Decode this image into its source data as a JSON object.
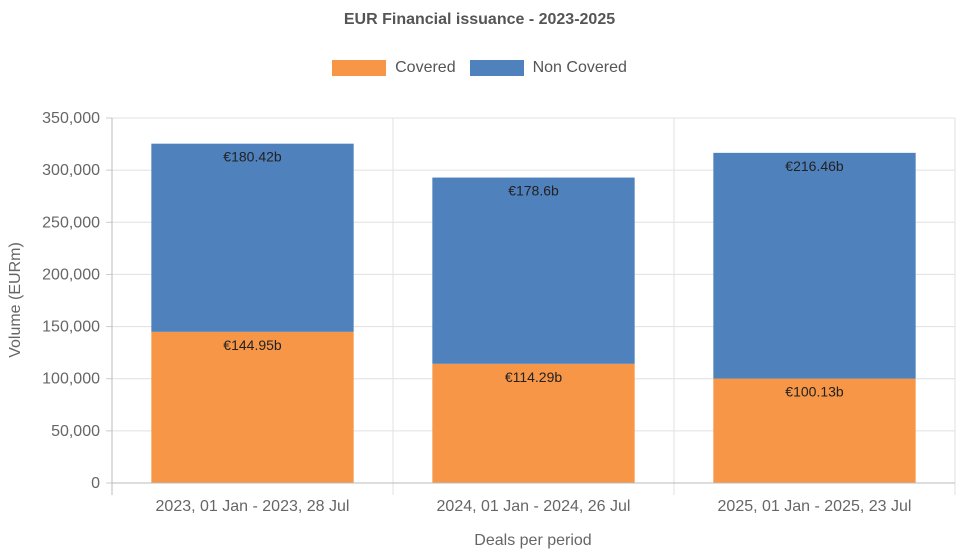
{
  "chart_data": {
    "type": "bar",
    "stacked": true,
    "title": "EUR Financial issuance - 2023-2025",
    "xlabel": "Deals per period",
    "ylabel": "Volume (EURm)",
    "ylim": [
      0,
      350000
    ],
    "yticks": [
      0,
      50000,
      100000,
      150000,
      200000,
      250000,
      300000,
      350000
    ],
    "ytick_labels": [
      "0",
      "50,000",
      "100,000",
      "150,000",
      "200,000",
      "250,000",
      "300,000",
      "350,000"
    ],
    "categories": [
      "2023, 01 Jan - 2023, 28 Jul",
      "2024, 01 Jan - 2024, 26 Jul",
      "2025, 01 Jan - 2025, 23 Jul"
    ],
    "series": [
      {
        "name": "Covered",
        "color": "#f79646",
        "values": [
          144950,
          114290,
          100130
        ],
        "labels": [
          "€144.95b",
          "€114.29b",
          "€100.13b"
        ]
      },
      {
        "name": "Non Covered",
        "color": "#4f81bd",
        "values": [
          180420,
          178600,
          216460
        ],
        "labels": [
          "€180.42b",
          "€178.6b",
          "€216.46b"
        ]
      }
    ],
    "grid": true,
    "legend_position": "top-center"
  }
}
